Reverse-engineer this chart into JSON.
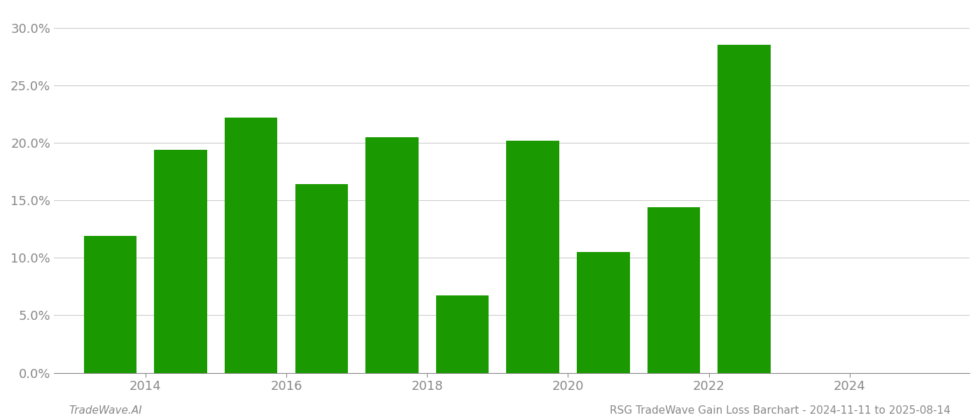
{
  "years": [
    2013,
    2014,
    2015,
    2016,
    2017,
    2018,
    2019,
    2020,
    2021,
    2022
  ],
  "values": [
    0.119,
    0.194,
    0.222,
    0.164,
    0.205,
    0.067,
    0.202,
    0.105,
    0.144,
    0.285
  ],
  "bar_color": "#1a9a00",
  "background_color": "#ffffff",
  "grid_color": "#cccccc",
  "axis_label_color": "#888888",
  "ylim": [
    0,
    0.315
  ],
  "yticks": [
    0.0,
    0.05,
    0.1,
    0.15,
    0.2,
    0.25,
    0.3
  ],
  "xlim_left": 2012.2,
  "xlim_right": 2025.2,
  "xtick_positions": [
    2013.5,
    2015.5,
    2017.5,
    2019.5,
    2021.5,
    2023.5
  ],
  "xtick_labels": [
    "2014",
    "2016",
    "2018",
    "2020",
    "2022",
    "2024"
  ],
  "bar_width": 0.75,
  "footer_left": "TradeWave.AI",
  "footer_right": "RSG TradeWave Gain Loss Barchart - 2024-11-11 to 2025-08-14",
  "footer_fontsize": 11,
  "tick_fontsize": 13
}
